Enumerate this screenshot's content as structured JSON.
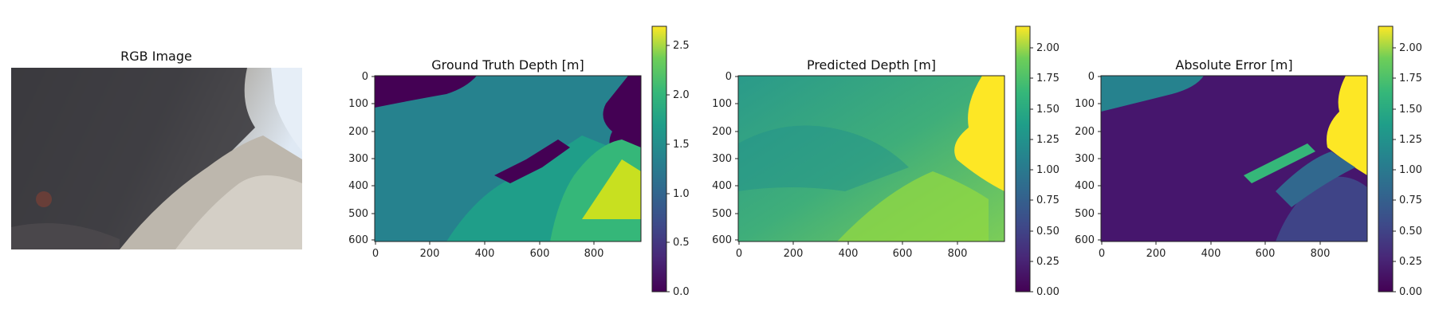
{
  "panels": [
    {
      "title": "RGB Image"
    },
    {
      "title": "Ground Truth Depth [m]",
      "colorbar_ticks": [
        "0.0",
        "0.5",
        "1.0",
        "1.5",
        "2.0",
        "2.5"
      ],
      "colorbar_range": [
        0,
        2.7
      ]
    },
    {
      "title": "Predicted Depth [m]",
      "colorbar_ticks": [
        "0.00",
        "0.25",
        "0.50",
        "0.75",
        "1.00",
        "1.25",
        "1.50",
        "1.75",
        "2.00"
      ],
      "colorbar_range": [
        0,
        2.18
      ]
    },
    {
      "title": "Absolute Error [m]",
      "colorbar_ticks": [
        "0.00",
        "0.25",
        "0.50",
        "0.75",
        "1.00",
        "1.25",
        "1.50",
        "1.75",
        "2.00"
      ],
      "colorbar_range": [
        0,
        2.18
      ]
    }
  ],
  "axes": {
    "x_ticks": [
      "0",
      "200",
      "400",
      "600",
      "800"
    ],
    "y_ticks": [
      "0",
      "100",
      "200",
      "300",
      "400",
      "500",
      "600"
    ]
  },
  "colormap": "viridis"
}
